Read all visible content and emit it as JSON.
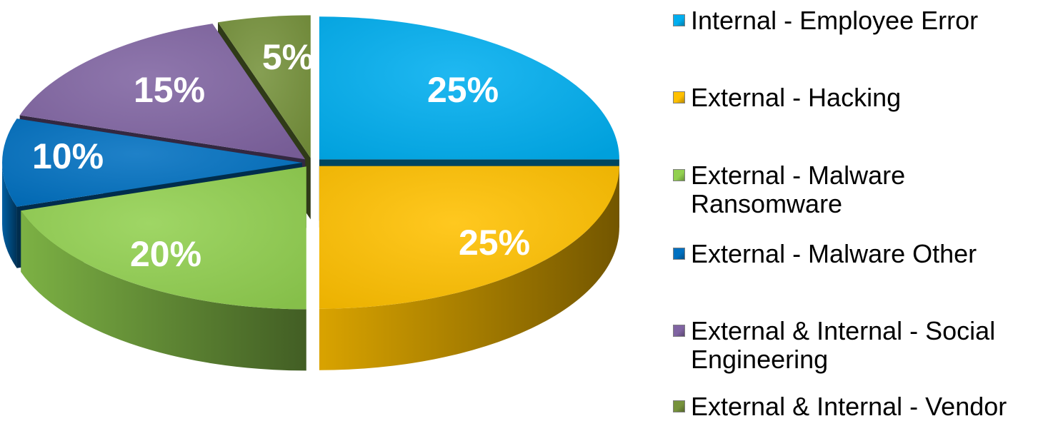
{
  "chart_data": {
    "type": "pie",
    "title": "",
    "categories": [
      "Internal - Employee Error",
      "External - Hacking",
      "External - Malware Ransomware",
      "External - Malware Other",
      "External & Internal - Social Engineering",
      "External & Internal - Vendor"
    ],
    "values": [
      25,
      25,
      20,
      10,
      15,
      5
    ],
    "labels": [
      "25%",
      "25%",
      "20%",
      "10%",
      "15%",
      "5%"
    ],
    "colors": [
      "#00aeef",
      "#ffc000",
      "#92d050",
      "#0070c0",
      "#8064a2",
      "#76923c"
    ],
    "legend_position": "right",
    "style": "3d-exploded"
  }
}
